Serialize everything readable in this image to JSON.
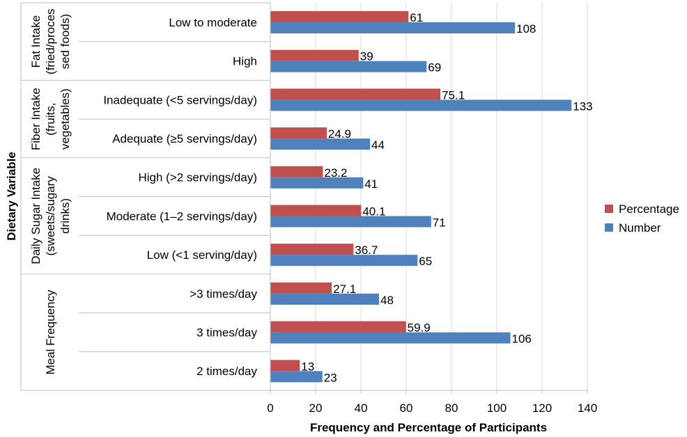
{
  "chart_data": {
    "type": "bar",
    "orientation": "horizontal",
    "xlabel": "Frequency and Percentage of Participants",
    "ylabel": "Dietary Variable",
    "xlim": [
      0,
      140
    ],
    "xticks": [
      0,
      20,
      40,
      60,
      80,
      100,
      120,
      140
    ],
    "grid": true,
    "legend_position": "right",
    "groups": [
      {
        "label_lines": [
          "Fat Intake",
          "(fried/proces",
          "sed foods)"
        ],
        "categories": [
          "Low to moderate",
          "High"
        ]
      },
      {
        "label_lines": [
          "Fiber Intake",
          "(fruits,",
          "vegetables)"
        ],
        "categories": [
          "Inadequate (<5 servings/day)",
          "Adequate (≥5 servings/day)"
        ]
      },
      {
        "label_lines": [
          "Daily Sugar Intake",
          "(sweets/sugary",
          "drinks)"
        ],
        "categories": [
          "High (>2 servings/day)",
          "Moderate (1–2 servings/day)",
          "Low (<1 serving/day)"
        ]
      },
      {
        "label_lines": [
          "Meal Frequency"
        ],
        "categories": [
          ">3 times/day",
          "3 times/day",
          "2 times/day"
        ]
      }
    ],
    "categories": [
      "Low to moderate",
      "High",
      "Inadequate (<5 servings/day)",
      "Adequate (≥5 servings/day)",
      "High (>2 servings/day)",
      "Moderate (1–2 servings/day)",
      "Low (<1 serving/day)",
      ">3 times/day",
      "3 times/day",
      "2 times/day"
    ],
    "series": [
      {
        "name": "Percentage",
        "color": "#C0504D",
        "values": [
          61,
          39,
          75.1,
          24.9,
          23.2,
          40.1,
          36.7,
          27.1,
          59.9,
          13
        ]
      },
      {
        "name": "Number",
        "color": "#4F81BD",
        "values": [
          108,
          69,
          133,
          44,
          41,
          71,
          65,
          48,
          106,
          23
        ]
      }
    ]
  }
}
